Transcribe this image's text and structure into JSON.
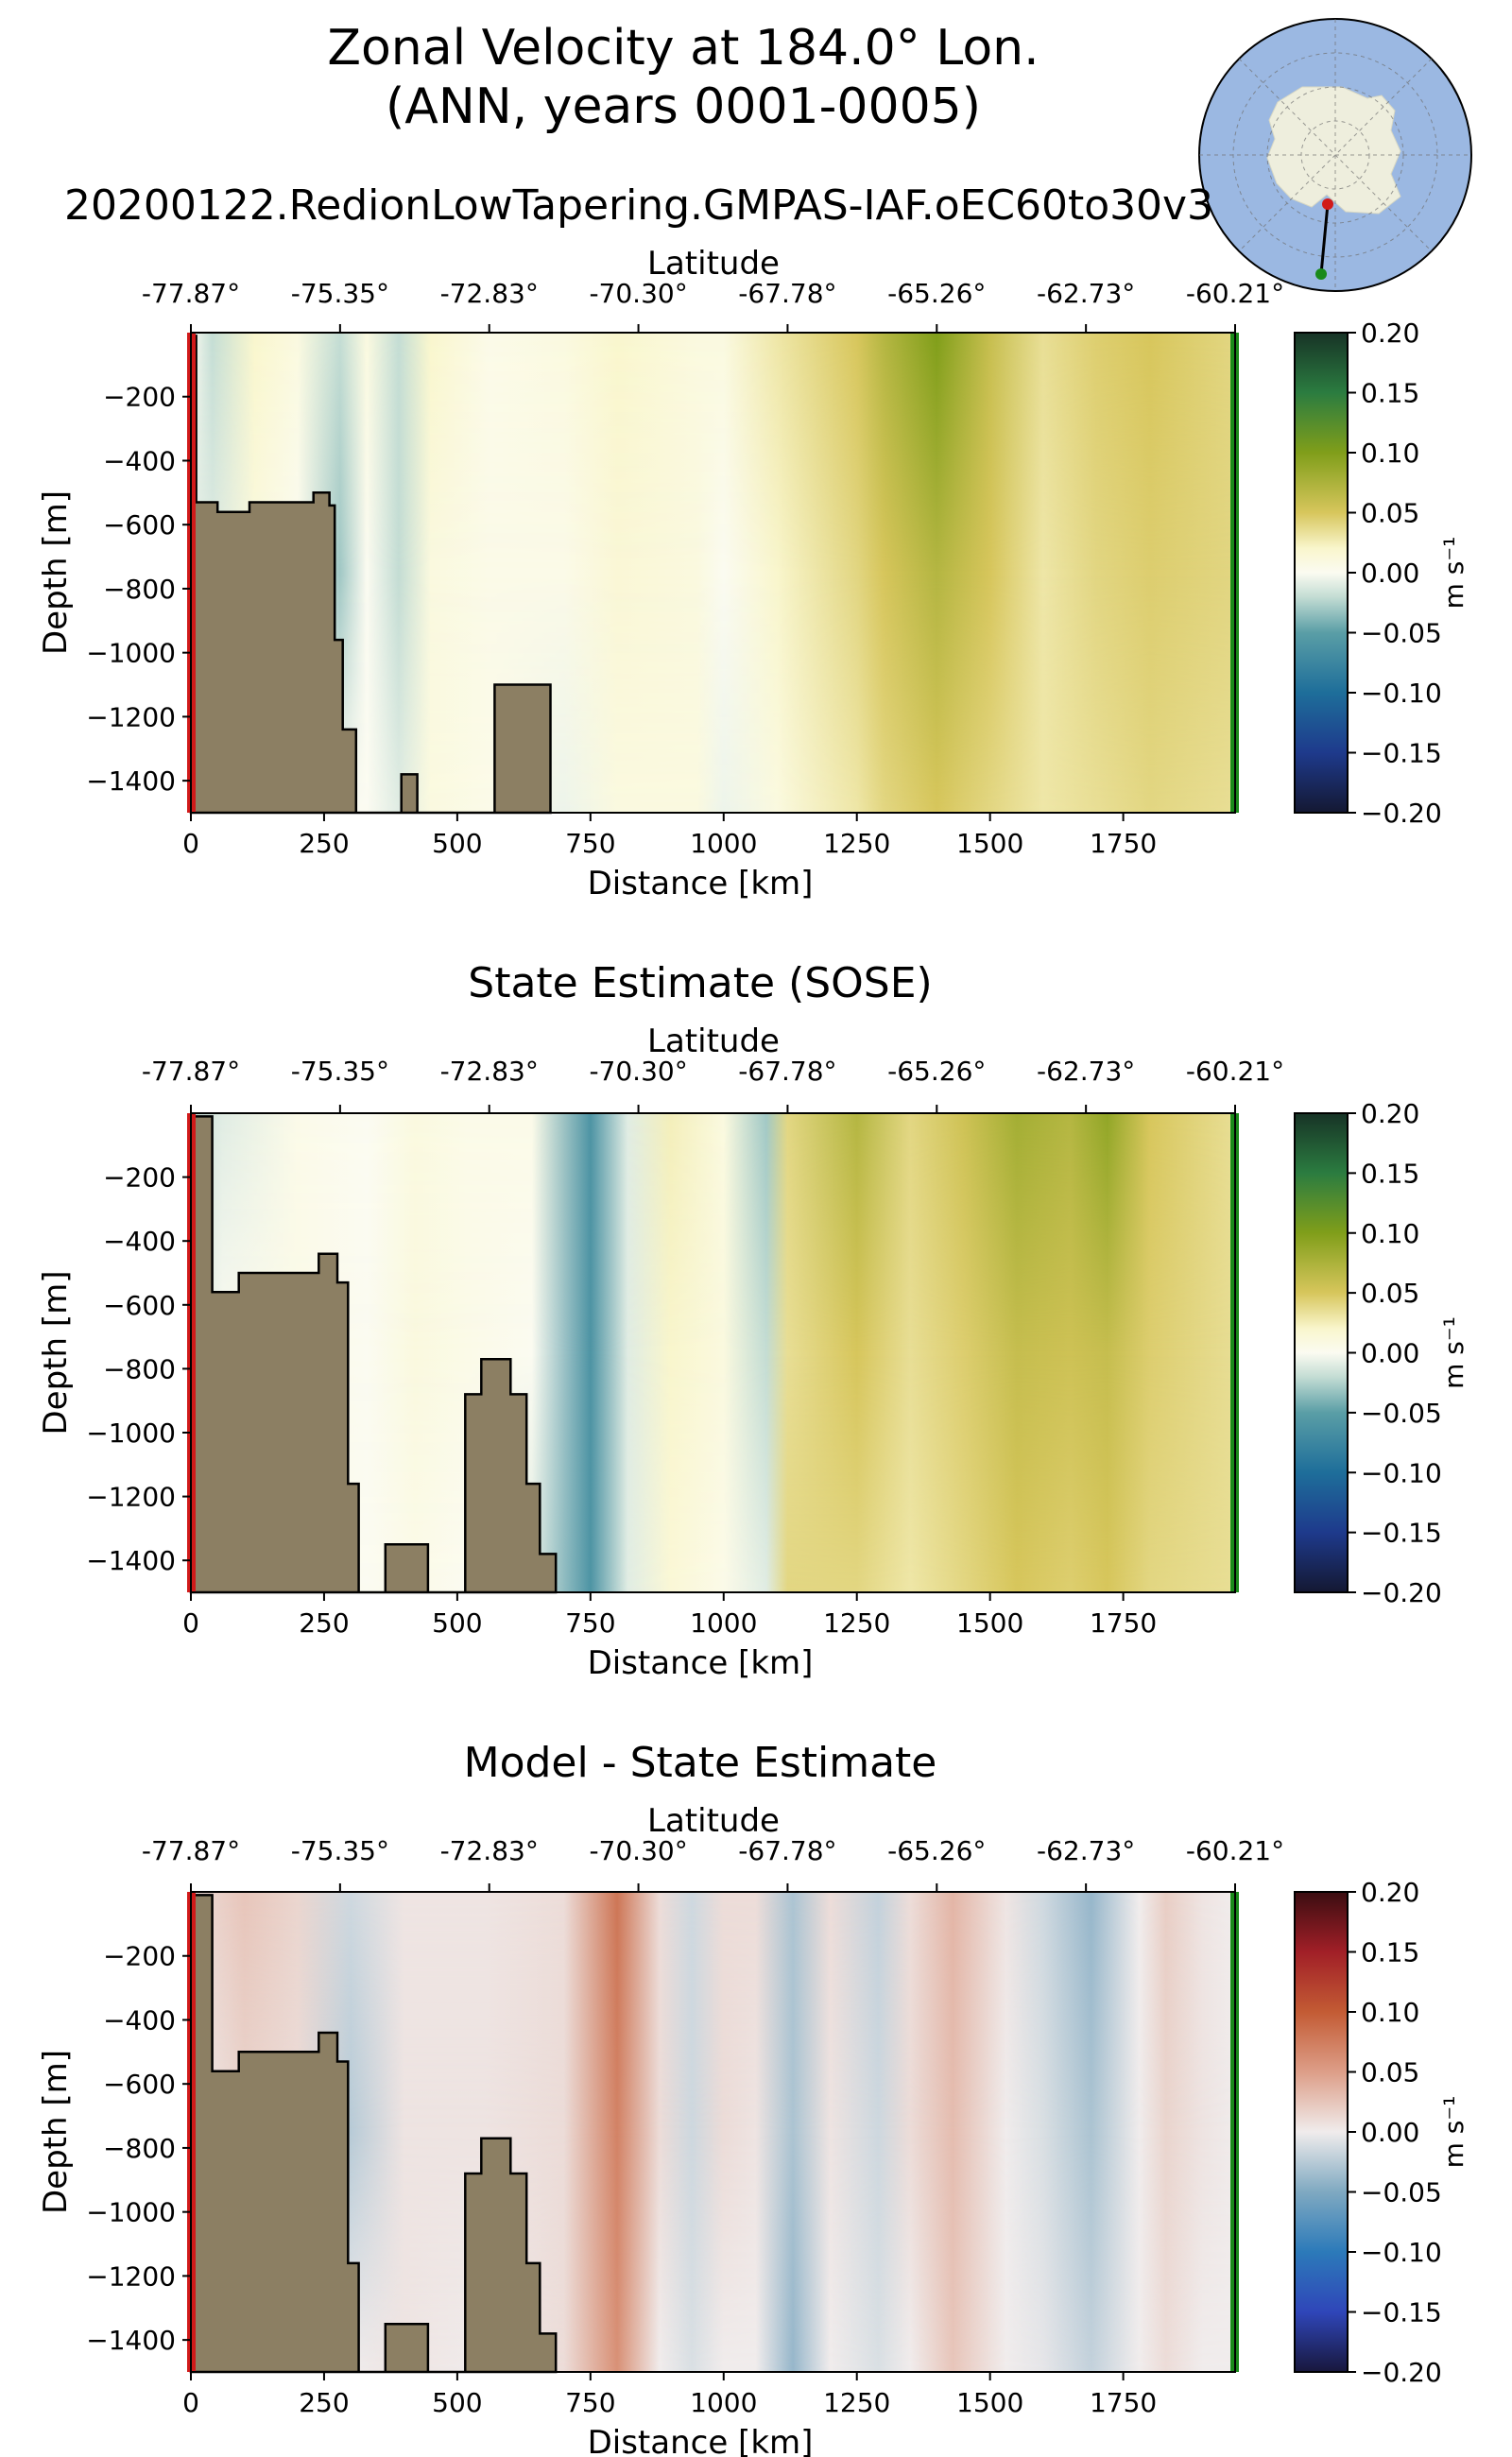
{
  "figure": {
    "title_line1": "Zonal Velocity at 184.0° Lon.",
    "title_line2": "(ANN, years 0001-0005)",
    "colors": {
      "topography": "#8c7f63",
      "start_marker": "#d11a1a",
      "end_marker": "#1a8a1a",
      "ocean": "#9bb8e2",
      "land": "#eeeedd"
    }
  },
  "inset_map": {
    "type": "polar-south-stereographic",
    "section_start_marker": "red",
    "section_end_marker": "green"
  },
  "chart_data": [
    {
      "type": "heatmap",
      "title": "20200122.RedionLowTapering.GMPAS-IAF.oEC60to30v3",
      "xlabel": "Distance [km]",
      "ylabel": "Depth [m]",
      "top_xlabel": "Latitude",
      "xlim": [
        0,
        1960
      ],
      "ylim": [
        -1500,
        0
      ],
      "x_ticks": [
        0,
        250,
        500,
        750,
        1000,
        1250,
        1500,
        1750
      ],
      "x_tick_labels": [
        "0",
        "250",
        "500",
        "750",
        "1000",
        "1250",
        "1500",
        "1750"
      ],
      "y_ticks": [
        -200,
        -400,
        -600,
        -800,
        -1000,
        -1200,
        -1400
      ],
      "y_tick_labels": [
        "−200",
        "−400",
        "−600",
        "−800",
        "−1000",
        "−1200",
        "−1400"
      ],
      "top_tick_labels": [
        "-77.87°",
        "-75.35°",
        "-72.83°",
        "-70.30°",
        "-67.78°",
        "-65.26°",
        "-62.73°",
        "-60.21°"
      ],
      "top_tick_positions_km": [
        0,
        280,
        560,
        840,
        1120,
        1400,
        1680,
        1960
      ],
      "colormap": "speed-like (navy-teal-white-olive-green)",
      "colorbar": {
        "vmin": -0.2,
        "vmax": 0.2,
        "label": "m s⁻¹",
        "ticks": [
          0.2,
          0.15,
          0.1,
          0.05,
          0.0,
          -0.05,
          -0.1,
          -0.15,
          -0.2
        ],
        "tick_labels": [
          "0.20",
          "0.15",
          "0.10",
          "0.05",
          "0.00",
          "−0.05",
          "−0.10",
          "−0.15",
          "−0.20"
        ]
      },
      "topography": [
        [
          0,
          -1500
        ],
        [
          0,
          -10
        ],
        [
          10,
          -10
        ],
        [
          10,
          -530
        ],
        [
          50,
          -530
        ],
        [
          50,
          -560
        ],
        [
          110,
          -560
        ],
        [
          110,
          -530
        ],
        [
          230,
          -530
        ],
        [
          230,
          -500
        ],
        [
          260,
          -500
        ],
        [
          260,
          -540
        ],
        [
          270,
          -540
        ],
        [
          270,
          -960
        ],
        [
          285,
          -960
        ],
        [
          285,
          -1240
        ],
        [
          310,
          -1240
        ],
        [
          310,
          -1500
        ],
        [
          395,
          -1500
        ],
        [
          395,
          -1380
        ],
        [
          425,
          -1380
        ],
        [
          425,
          -1500
        ],
        [
          570,
          -1500
        ],
        [
          570,
          -1100
        ],
        [
          675,
          -1100
        ],
        [
          675,
          -1500
        ]
      ],
      "bands": [
        {
          "km": 0,
          "v": [
            0.0,
            -0.01,
            -0.01
          ]
        },
        {
          "km": 40,
          "v": [
            -0.02,
            -0.01,
            0.0
          ]
        },
        {
          "km": 120,
          "v": [
            0.02,
            0.01,
            0.01
          ]
        },
        {
          "km": 200,
          "v": [
            0.01,
            0.0,
            0.0
          ]
        },
        {
          "km": 280,
          "v": [
            -0.02,
            -0.03,
            0.0
          ]
        },
        {
          "km": 330,
          "v": [
            0.01,
            0.0,
            0.0
          ]
        },
        {
          "km": 390,
          "v": [
            -0.02,
            -0.02,
            -0.01
          ]
        },
        {
          "km": 450,
          "v": [
            0.02,
            0.01,
            0.01
          ]
        },
        {
          "km": 560,
          "v": [
            0.005,
            0.005,
            0.005
          ]
        },
        {
          "km": 700,
          "v": [
            0.01,
            0.005,
            -0.005
          ]
        },
        {
          "km": 800,
          "v": [
            0.02,
            0.015,
            0.01
          ]
        },
        {
          "km": 950,
          "v": [
            0.01,
            0.01,
            0.01
          ]
        },
        {
          "km": 1000,
          "v": [
            0.01,
            0.0,
            -0.005
          ]
        },
        {
          "km": 1100,
          "v": [
            0.03,
            0.02,
            0.01
          ]
        },
        {
          "km": 1250,
          "v": [
            0.05,
            0.04,
            0.03
          ]
        },
        {
          "km": 1300,
          "v": [
            0.07,
            0.05,
            0.04
          ]
        },
        {
          "km": 1400,
          "v": [
            0.1,
            0.07,
            0.05
          ]
        },
        {
          "km": 1500,
          "v": [
            0.06,
            0.05,
            0.04
          ]
        },
        {
          "km": 1600,
          "v": [
            0.035,
            0.03,
            0.03
          ]
        },
        {
          "km": 1700,
          "v": [
            0.045,
            0.04,
            0.035
          ]
        },
        {
          "km": 1800,
          "v": [
            0.05,
            0.045,
            0.04
          ]
        },
        {
          "km": 1960,
          "v": [
            0.04,
            0.04,
            0.035
          ]
        }
      ]
    },
    {
      "type": "heatmap",
      "title": "State Estimate (SOSE)",
      "xlabel": "Distance [km]",
      "ylabel": "Depth [m]",
      "top_xlabel": "Latitude",
      "xlim": [
        0,
        1960
      ],
      "ylim": [
        -1500,
        0
      ],
      "x_ticks": [
        0,
        250,
        500,
        750,
        1000,
        1250,
        1500,
        1750
      ],
      "x_tick_labels": [
        "0",
        "250",
        "500",
        "750",
        "1000",
        "1250",
        "1500",
        "1750"
      ],
      "y_ticks": [
        -200,
        -400,
        -600,
        -800,
        -1000,
        -1200,
        -1400
      ],
      "y_tick_labels": [
        "−200",
        "−400",
        "−600",
        "−800",
        "−1000",
        "−1200",
        "−1400"
      ],
      "top_tick_labels": [
        "-77.87°",
        "-75.35°",
        "-72.83°",
        "-70.30°",
        "-67.78°",
        "-65.26°",
        "-62.73°",
        "-60.21°"
      ],
      "top_tick_positions_km": [
        0,
        280,
        560,
        840,
        1120,
        1400,
        1680,
        1960
      ],
      "colormap": "speed-like (navy-teal-white-olive-green)",
      "colorbar": {
        "vmin": -0.2,
        "vmax": 0.2,
        "label": "m s⁻¹",
        "ticks": [
          0.2,
          0.15,
          0.1,
          0.05,
          0.0,
          -0.05,
          -0.1,
          -0.15,
          -0.2
        ],
        "tick_labels": [
          "0.20",
          "0.15",
          "0.10",
          "0.05",
          "0.00",
          "−0.05",
          "−0.10",
          "−0.15",
          "−0.20"
        ]
      },
      "topography": [
        [
          0,
          -1500
        ],
        [
          0,
          -10
        ],
        [
          40,
          -10
        ],
        [
          40,
          -560
        ],
        [
          90,
          -560
        ],
        [
          90,
          -500
        ],
        [
          240,
          -500
        ],
        [
          240,
          -440
        ],
        [
          275,
          -440
        ],
        [
          275,
          -530
        ],
        [
          295,
          -530
        ],
        [
          295,
          -1160
        ],
        [
          315,
          -1160
        ],
        [
          315,
          -1500
        ],
        [
          365,
          -1500
        ],
        [
          365,
          -1350
        ],
        [
          445,
          -1350
        ],
        [
          445,
          -1500
        ],
        [
          515,
          -1500
        ],
        [
          515,
          -880
        ],
        [
          545,
          -880
        ],
        [
          545,
          -770
        ],
        [
          600,
          -770
        ],
        [
          600,
          -880
        ],
        [
          630,
          -880
        ],
        [
          630,
          -1160
        ],
        [
          655,
          -1160
        ],
        [
          655,
          -1380
        ],
        [
          685,
          -1380
        ],
        [
          685,
          -1500
        ]
      ],
      "bands": [
        {
          "km": 0,
          "v": [
            -0.02,
            -0.01,
            0.0
          ]
        },
        {
          "km": 60,
          "v": [
            -0.01,
            0.0,
            0.0
          ]
        },
        {
          "km": 200,
          "v": [
            0.005,
            0.005,
            0.005
          ]
        },
        {
          "km": 330,
          "v": [
            0.0,
            0.0,
            0.0
          ]
        },
        {
          "km": 420,
          "v": [
            0.01,
            0.01,
            0.005
          ]
        },
        {
          "km": 520,
          "v": [
            0.005,
            0.005,
            0.0
          ]
        },
        {
          "km": 640,
          "v": [
            0.005,
            0.0,
            -0.01
          ]
        },
        {
          "km": 750,
          "v": [
            -0.06,
            -0.06,
            -0.06
          ]
        },
        {
          "km": 820,
          "v": [
            -0.01,
            -0.01,
            -0.01
          ]
        },
        {
          "km": 900,
          "v": [
            0.025,
            0.02,
            0.015
          ]
        },
        {
          "km": 1000,
          "v": [
            0.01,
            0.01,
            0.005
          ]
        },
        {
          "km": 1080,
          "v": [
            -0.03,
            -0.02,
            -0.01
          ]
        },
        {
          "km": 1120,
          "v": [
            0.04,
            0.035,
            0.04
          ]
        },
        {
          "km": 1250,
          "v": [
            0.07,
            0.05,
            0.04
          ]
        },
        {
          "km": 1350,
          "v": [
            0.04,
            0.035,
            0.03
          ]
        },
        {
          "km": 1450,
          "v": [
            0.055,
            0.045,
            0.04
          ]
        },
        {
          "km": 1550,
          "v": [
            0.08,
            0.06,
            0.05
          ]
        },
        {
          "km": 1650,
          "v": [
            0.07,
            0.055,
            0.045
          ]
        },
        {
          "km": 1720,
          "v": [
            0.09,
            0.06,
            0.05
          ]
        },
        {
          "km": 1800,
          "v": [
            0.05,
            0.045,
            0.04
          ]
        },
        {
          "km": 1960,
          "v": [
            0.035,
            0.035,
            0.035
          ]
        }
      ]
    },
    {
      "type": "heatmap",
      "title": "Model - State Estimate",
      "xlabel": "Distance [km]",
      "ylabel": "Depth [m]",
      "top_xlabel": "Latitude",
      "xlim": [
        0,
        1960
      ],
      "ylim": [
        -1500,
        0
      ],
      "x_ticks": [
        0,
        250,
        500,
        750,
        1000,
        1250,
        1500,
        1750
      ],
      "x_tick_labels": [
        "0",
        "250",
        "500",
        "750",
        "1000",
        "1250",
        "1500",
        "1750"
      ],
      "y_ticks": [
        -200,
        -400,
        -600,
        -800,
        -1000,
        -1200,
        -1400
      ],
      "y_tick_labels": [
        "−200",
        "−400",
        "−600",
        "−800",
        "−1000",
        "−1200",
        "−1400"
      ],
      "top_tick_labels": [
        "-77.87°",
        "-75.35°",
        "-72.83°",
        "-70.30°",
        "-67.78°",
        "-65.26°",
        "-62.73°",
        "-60.21°"
      ],
      "top_tick_positions_km": [
        0,
        280,
        560,
        840,
        1120,
        1400,
        1680,
        1960
      ],
      "colormap": "balance (navy-blue-white-red-dark red)",
      "colorbar": {
        "vmin": -0.2,
        "vmax": 0.2,
        "label": "m s⁻¹",
        "ticks": [
          0.2,
          0.15,
          0.1,
          0.05,
          0.0,
          -0.05,
          -0.1,
          -0.15,
          -0.2
        ],
        "tick_labels": [
          "0.20",
          "0.15",
          "0.10",
          "0.05",
          "0.00",
          "−0.05",
          "−0.10",
          "−0.15",
          "−0.20"
        ]
      },
      "topography": [
        [
          0,
          -1500
        ],
        [
          0,
          -10
        ],
        [
          40,
          -10
        ],
        [
          40,
          -560
        ],
        [
          90,
          -560
        ],
        [
          90,
          -500
        ],
        [
          240,
          -500
        ],
        [
          240,
          -440
        ],
        [
          275,
          -440
        ],
        [
          275,
          -530
        ],
        [
          295,
          -530
        ],
        [
          295,
          -1160
        ],
        [
          315,
          -1160
        ],
        [
          315,
          -1500
        ],
        [
          365,
          -1500
        ],
        [
          365,
          -1350
        ],
        [
          445,
          -1350
        ],
        [
          445,
          -1500
        ],
        [
          515,
          -1500
        ],
        [
          515,
          -880
        ],
        [
          545,
          -880
        ],
        [
          545,
          -770
        ],
        [
          600,
          -770
        ],
        [
          600,
          -880
        ],
        [
          630,
          -880
        ],
        [
          630,
          -1160
        ],
        [
          655,
          -1160
        ],
        [
          655,
          -1380
        ],
        [
          685,
          -1380
        ],
        [
          685,
          -1500
        ]
      ],
      "bands": [
        {
          "km": 0,
          "v": [
            0.01,
            0.0,
            0.0
          ]
        },
        {
          "km": 100,
          "v": [
            0.025,
            0.015,
            0.0
          ]
        },
        {
          "km": 200,
          "v": [
            0.015,
            0.01,
            0.0
          ]
        },
        {
          "km": 300,
          "v": [
            -0.015,
            -0.025,
            0.0
          ]
        },
        {
          "km": 400,
          "v": [
            0.005,
            0.005,
            0.005
          ]
        },
        {
          "km": 550,
          "v": [
            0.005,
            0.005,
            0.0
          ]
        },
        {
          "km": 700,
          "v": [
            0.01,
            0.01,
            0.01
          ]
        },
        {
          "km": 800,
          "v": [
            0.08,
            0.07,
            0.06
          ]
        },
        {
          "km": 880,
          "v": [
            0.01,
            0.01,
            0.0
          ]
        },
        {
          "km": 940,
          "v": [
            -0.015,
            -0.015,
            -0.01
          ]
        },
        {
          "km": 1000,
          "v": [
            0.01,
            0.01,
            0.0
          ]
        },
        {
          "km": 1060,
          "v": [
            0.01,
            0.005,
            0.0
          ]
        },
        {
          "km": 1130,
          "v": [
            -0.03,
            -0.03,
            -0.04
          ]
        },
        {
          "km": 1200,
          "v": [
            0.01,
            0.005,
            0.0
          ]
        },
        {
          "km": 1290,
          "v": [
            -0.02,
            -0.015,
            -0.01
          ]
        },
        {
          "km": 1350,
          "v": [
            0.01,
            0.01,
            0.0
          ]
        },
        {
          "km": 1430,
          "v": [
            0.035,
            0.03,
            0.025
          ]
        },
        {
          "km": 1530,
          "v": [
            0.005,
            0.0,
            0.0
          ]
        },
        {
          "km": 1600,
          "v": [
            -0.015,
            -0.01,
            -0.005
          ]
        },
        {
          "km": 1690,
          "v": [
            -0.04,
            -0.03,
            -0.02
          ]
        },
        {
          "km": 1780,
          "v": [
            0.0,
            0.0,
            0.0
          ]
        },
        {
          "km": 1830,
          "v": [
            0.02,
            0.015,
            0.01
          ]
        },
        {
          "km": 1900,
          "v": [
            0.005,
            0.005,
            0.0
          ]
        },
        {
          "km": 1960,
          "v": [
            0.0,
            0.0,
            0.0
          ]
        }
      ]
    }
  ]
}
